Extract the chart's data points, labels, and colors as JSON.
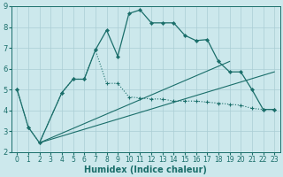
{
  "bg_color": "#cce8ec",
  "grid_color": "#aacdd4",
  "line_color": "#1a6e6a",
  "xlabel": "Humidex (Indice chaleur)",
  "xlabel_fontsize": 7,
  "tick_fontsize": 5.5,
  "xlim": [
    -0.5,
    23.5
  ],
  "ylim": [
    2,
    9
  ],
  "yticks": [
    2,
    3,
    4,
    5,
    6,
    7,
    8,
    9
  ],
  "xticks": [
    0,
    1,
    2,
    3,
    4,
    5,
    6,
    7,
    8,
    9,
    10,
    11,
    12,
    13,
    14,
    15,
    16,
    17,
    18,
    19,
    20,
    21,
    22,
    23
  ],
  "curve1_x": [
    0,
    1,
    2,
    4,
    5,
    6,
    7,
    8,
    9,
    10,
    11,
    12,
    13,
    14,
    15,
    16,
    17,
    18,
    19,
    20,
    21,
    22,
    23
  ],
  "curve1_y": [
    5.0,
    3.2,
    2.45,
    4.85,
    5.5,
    5.5,
    6.9,
    7.85,
    6.6,
    8.65,
    8.82,
    8.2,
    8.2,
    8.2,
    7.6,
    7.35,
    7.4,
    6.35,
    5.85,
    5.85,
    5.0,
    4.05,
    4.05
  ],
  "curve2_x": [
    0,
    1,
    2,
    4,
    5,
    6,
    7,
    8,
    9,
    10,
    11,
    12,
    13,
    14,
    15,
    16,
    17,
    18,
    19,
    20,
    21,
    22,
    23
  ],
  "curve2_y": [
    5.0,
    3.2,
    2.45,
    4.85,
    5.5,
    5.5,
    6.9,
    5.3,
    5.3,
    4.65,
    4.6,
    4.55,
    4.55,
    4.45,
    4.45,
    4.45,
    4.4,
    4.35,
    4.3,
    4.25,
    4.1,
    4.05,
    4.05
  ],
  "trend1_x": [
    2,
    19
  ],
  "trend1_y": [
    2.45,
    6.35
  ],
  "trend2_x": [
    2,
    23
  ],
  "trend2_y": [
    2.45,
    5.85
  ]
}
